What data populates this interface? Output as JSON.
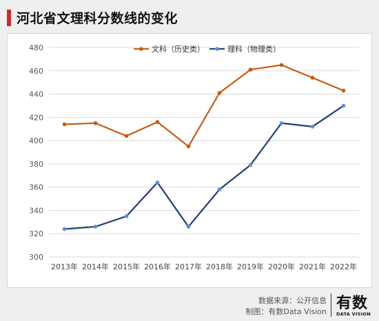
{
  "header": {
    "title": "河北省文理科分数线的变化"
  },
  "chart_data": {
    "type": "line",
    "categories": [
      "2013年",
      "2014年",
      "2015年",
      "2016年",
      "2017年",
      "2018年",
      "2019年",
      "2020年",
      "2021年",
      "2022年"
    ],
    "series": [
      {
        "name": "文科（历史类）",
        "color": "#c55a11",
        "values": [
          414,
          415,
          404,
          416,
          395,
          441,
          461,
          465,
          454,
          443
        ]
      },
      {
        "name": "理科（物理类）",
        "color": "#1f3d6e",
        "marker_color": "#5b8fd8",
        "values": [
          324,
          326,
          335,
          364,
          326,
          358,
          379,
          415,
          412,
          430
        ]
      }
    ],
    "ylim": [
      300,
      480
    ],
    "yticks": [
      300,
      320,
      340,
      360,
      380,
      400,
      420,
      440,
      460,
      480
    ],
    "grid": true,
    "legend_position": "top-center"
  },
  "footer": {
    "source": "数据来源：公开信息",
    "credit": "制图：有数Data Vision",
    "brand_main": "有数",
    "brand_sub": "DATA VISION"
  }
}
